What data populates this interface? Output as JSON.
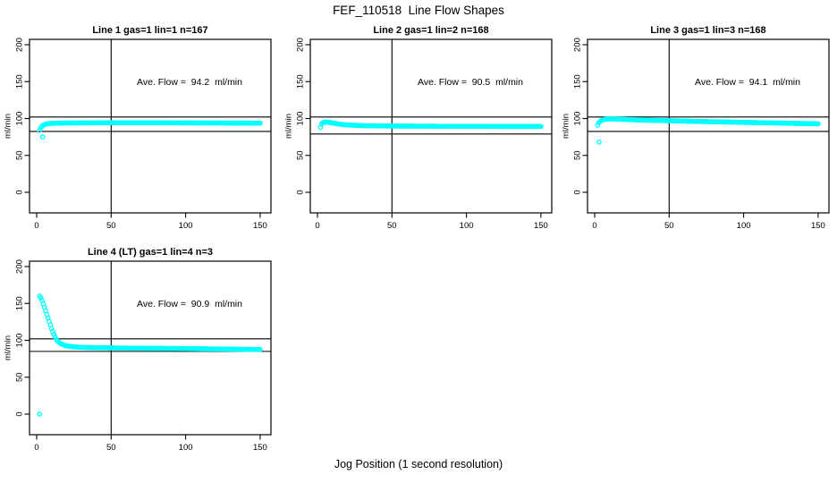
{
  "title": "FEF_110518  Line Flow Shapes",
  "xlabel": "Jog Position (1 second resolution)",
  "colors": {
    "points": "#00FFFF",
    "axis": "#000000",
    "background": "#FFFFFF"
  },
  "chart_data": [
    {
      "type": "scatter",
      "title": "Line 1 gas=1 lin=1 n=167",
      "annotation": "Ave. Flow =  94.2  ml/min",
      "ave_flow_ml_min": 94.2,
      "n": 167,
      "ylabel": "ml/min",
      "xticks": [
        0,
        50,
        100,
        150
      ],
      "yticks": [
        0,
        50,
        100,
        150,
        200
      ],
      "xlim": [
        -5,
        160
      ],
      "ylim": [
        -28,
        207
      ],
      "vline_x": 50,
      "ref_lines": [
        102,
        82.5
      ],
      "marker": "open-circle",
      "series_keypoints": [
        [
          2,
          84
        ],
        [
          3,
          88.5
        ],
        [
          4,
          90.5
        ],
        [
          5,
          91.5
        ],
        [
          7,
          92.8
        ],
        [
          10,
          93.5
        ],
        [
          15,
          93.8
        ],
        [
          25,
          94
        ],
        [
          50,
          94.3
        ],
        [
          80,
          94.3
        ],
        [
          110,
          94
        ],
        [
          150,
          93.7
        ]
      ],
      "outliers": [
        [
          4,
          75
        ]
      ]
    },
    {
      "type": "scatter",
      "title": "Line 2 gas=1 lin=2 n=168",
      "annotation": "Ave. Flow =  90.5  ml/min",
      "ave_flow_ml_min": 90.5,
      "n": 168,
      "ylabel": "ml/min",
      "xticks": [
        0,
        50,
        100,
        150
      ],
      "yticks": [
        0,
        50,
        100,
        150,
        200
      ],
      "xlim": [
        -5,
        160
      ],
      "ylim": [
        -28,
        207
      ],
      "vline_x": 50,
      "ref_lines": [
        102,
        79
      ],
      "marker": "open-circle",
      "series_keypoints": [
        [
          2,
          88
        ],
        [
          3,
          93.5
        ],
        [
          5,
          95.3
        ],
        [
          7,
          95
        ],
        [
          10,
          94
        ],
        [
          15,
          92.3
        ],
        [
          20,
          91.3
        ],
        [
          30,
          90.3
        ],
        [
          50,
          89.8
        ],
        [
          80,
          89.5
        ],
        [
          120,
          89.3
        ],
        [
          150,
          89.2
        ]
      ],
      "outliers": []
    },
    {
      "type": "scatter",
      "title": "Line 3 gas=1 lin=3 n=168",
      "annotation": "Ave. Flow =  94.1  ml/min",
      "ave_flow_ml_min": 94.1,
      "n": 168,
      "ylabel": "ml/min",
      "xticks": [
        0,
        50,
        100,
        150
      ],
      "yticks": [
        0,
        50,
        100,
        150,
        200
      ],
      "xlim": [
        -5,
        160
      ],
      "ylim": [
        -28,
        207
      ],
      "vline_x": 50,
      "ref_lines": [
        102,
        82.5
      ],
      "marker": "open-circle",
      "series_keypoints": [
        [
          2,
          91
        ],
        [
          3,
          95
        ],
        [
          5,
          98
        ],
        [
          8,
          99.3
        ],
        [
          12,
          99.5
        ],
        [
          20,
          98.8
        ],
        [
          30,
          98
        ],
        [
          50,
          97
        ],
        [
          70,
          96
        ],
        [
          90,
          95.2
        ],
        [
          120,
          94
        ],
        [
          150,
          92.8
        ]
      ],
      "outliers": [
        [
          3,
          68
        ]
      ]
    },
    {
      "type": "scatter",
      "title": "Line 4 (LT) gas=1 lin=4 n=3",
      "annotation": "Ave. Flow =  90.9  ml/min",
      "ave_flow_ml_min": 90.9,
      "n": 3,
      "ylabel": "ml/min",
      "xticks": [
        0,
        50,
        100,
        150
      ],
      "yticks": [
        0,
        50,
        100,
        150,
        200
      ],
      "xlim": [
        -5,
        160
      ],
      "ylim": [
        -28,
        207
      ],
      "vline_x": 50,
      "ref_lines": [
        102,
        85
      ],
      "marker": "open-circle",
      "series_keypoints": [
        [
          2,
          160
        ],
        [
          3,
          157
        ],
        [
          4,
          152
        ],
        [
          5,
          146
        ],
        [
          6,
          140
        ],
        [
          7,
          134
        ],
        [
          8,
          128
        ],
        [
          9,
          122
        ],
        [
          10,
          116
        ],
        [
          11,
          111
        ],
        [
          12,
          106
        ],
        [
          13,
          102
        ],
        [
          14,
          99
        ],
        [
          15,
          97
        ],
        [
          17,
          94.5
        ],
        [
          20,
          92.5
        ],
        [
          25,
          91.2
        ],
        [
          30,
          90.5
        ],
        [
          40,
          90
        ],
        [
          60,
          89.5
        ],
        [
          90,
          89
        ],
        [
          120,
          88.3
        ],
        [
          150,
          87.5
        ]
      ],
      "outliers": [
        [
          2,
          0
        ]
      ]
    }
  ]
}
